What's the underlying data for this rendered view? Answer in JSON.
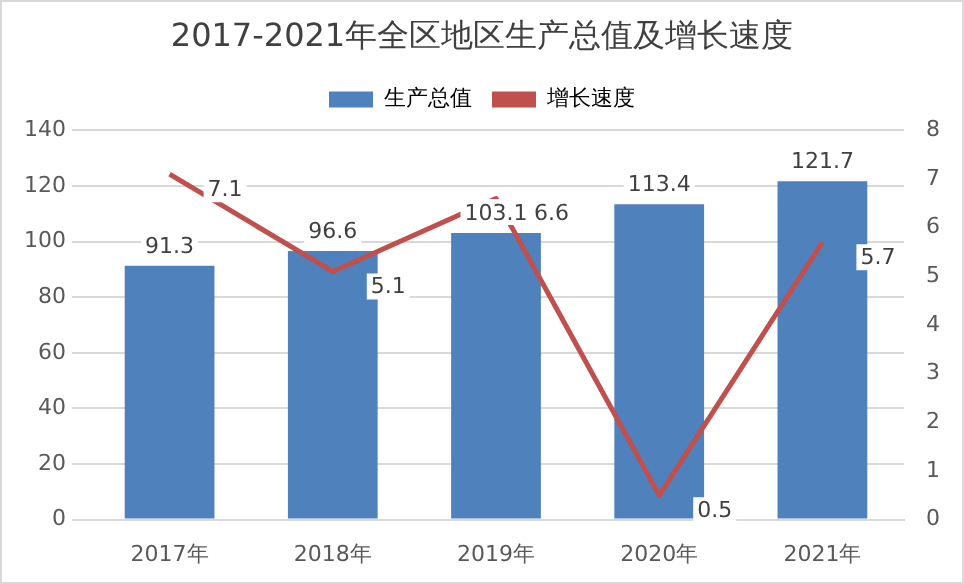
{
  "chart_data": {
    "type": "bar",
    "title": "2017-2021年全区地区生产总值及增长速度",
    "categories": [
      "2017年",
      "2018年",
      "2019年",
      "2020年",
      "2021年"
    ],
    "series": [
      {
        "name": "生产总值",
        "color": "#4f81bd",
        "values": [
          91.3,
          96.6,
          103.1,
          113.4,
          121.7
        ]
      },
      {
        "name": "增长速度",
        "type": "line",
        "axis": "y2",
        "color": "#c0504d",
        "values": [
          7.1,
          5.1,
          6.6,
          0.5,
          5.7
        ]
      }
    ],
    "ylim": [
      0,
      140
    ],
    "yticks": [
      0,
      20,
      40,
      60,
      80,
      100,
      120,
      140
    ],
    "y2lim": [
      0,
      8
    ],
    "y2ticks": [
      0,
      1,
      2,
      3,
      4,
      5,
      6,
      7,
      8
    ],
    "grid": "y",
    "legend": "top",
    "data_labels": true,
    "marker": "none",
    "line_style": "solid"
  }
}
